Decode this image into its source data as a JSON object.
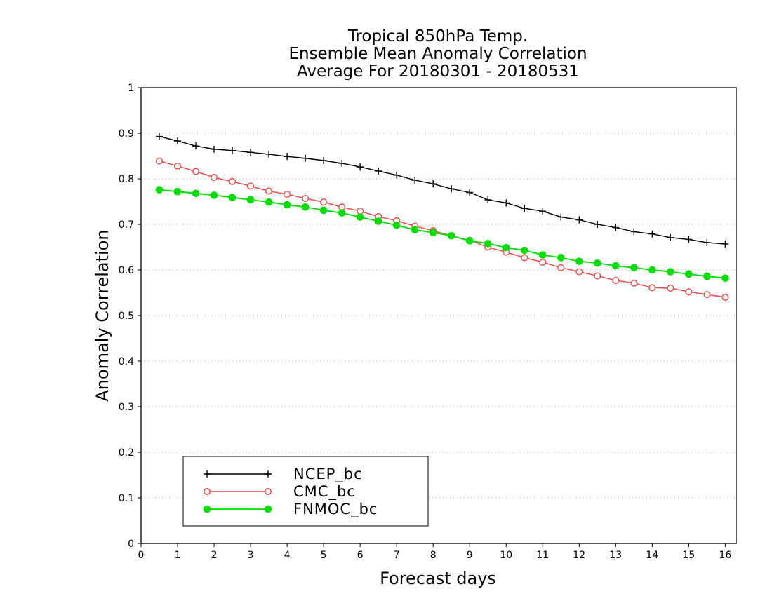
{
  "chart_data": {
    "type": "line",
    "title": [
      "Tropical 850hPa Temp.",
      "Ensemble Mean Anomaly Correlation",
      "Average For 20180301 - 20180531"
    ],
    "xlabel": "Forecast days",
    "ylabel": "Anomaly Correlation",
    "xlim": [
      0,
      16.3
    ],
    "ylim": [
      0,
      1
    ],
    "xticks": [
      "0",
      "1",
      "2",
      "3",
      "4",
      "5",
      "6",
      "7",
      "8",
      "9",
      "10",
      "11",
      "12",
      "13",
      "14",
      "15",
      "16"
    ],
    "yticks": [
      "0",
      "0.1",
      "0.2",
      "0.3",
      "0.4",
      "0.5",
      "0.6",
      "0.7",
      "0.8",
      "0.9",
      "1"
    ],
    "grid": "dotted horizontal",
    "legend_position": "bottom-left",
    "x": [
      0.5,
      1,
      1.5,
      2,
      2.5,
      3,
      3.5,
      4,
      4.5,
      5,
      5.5,
      6,
      6.5,
      7,
      7.5,
      8,
      8.5,
      9,
      9.5,
      10,
      10.5,
      11,
      11.5,
      12,
      12.5,
      13,
      13.5,
      14,
      14.5,
      15,
      15.5,
      16
    ],
    "series": [
      {
        "name": "NCEP_bc",
        "color": "#000000",
        "marker": "plus",
        "values": [
          0.893,
          0.883,
          0.872,
          0.865,
          0.862,
          0.858,
          0.854,
          0.849,
          0.845,
          0.84,
          0.834,
          0.826,
          0.817,
          0.808,
          0.797,
          0.789,
          0.778,
          0.77,
          0.754,
          0.747,
          0.735,
          0.729,
          0.716,
          0.71,
          0.7,
          0.693,
          0.684,
          0.679,
          0.671,
          0.667,
          0.66,
          0.657
        ]
      },
      {
        "name": "CMC_bc",
        "color": "#ee4444",
        "marker": "open-circle",
        "values": [
          0.839,
          0.828,
          0.816,
          0.803,
          0.794,
          0.784,
          0.773,
          0.766,
          0.757,
          0.749,
          0.738,
          0.729,
          0.717,
          0.708,
          0.696,
          0.686,
          0.675,
          0.665,
          0.65,
          0.639,
          0.627,
          0.617,
          0.605,
          0.596,
          0.587,
          0.577,
          0.571,
          0.561,
          0.56,
          0.552,
          0.546,
          0.54
        ]
      },
      {
        "name": "FNMOC_bc",
        "color": "#00dd00",
        "marker": "filled-circle",
        "values": [
          0.776,
          0.772,
          0.768,
          0.764,
          0.759,
          0.754,
          0.749,
          0.743,
          0.738,
          0.731,
          0.725,
          0.716,
          0.707,
          0.698,
          0.688,
          0.682,
          0.675,
          0.664,
          0.658,
          0.649,
          0.643,
          0.633,
          0.627,
          0.619,
          0.615,
          0.609,
          0.605,
          0.6,
          0.596,
          0.591,
          0.586,
          0.582
        ]
      }
    ]
  }
}
